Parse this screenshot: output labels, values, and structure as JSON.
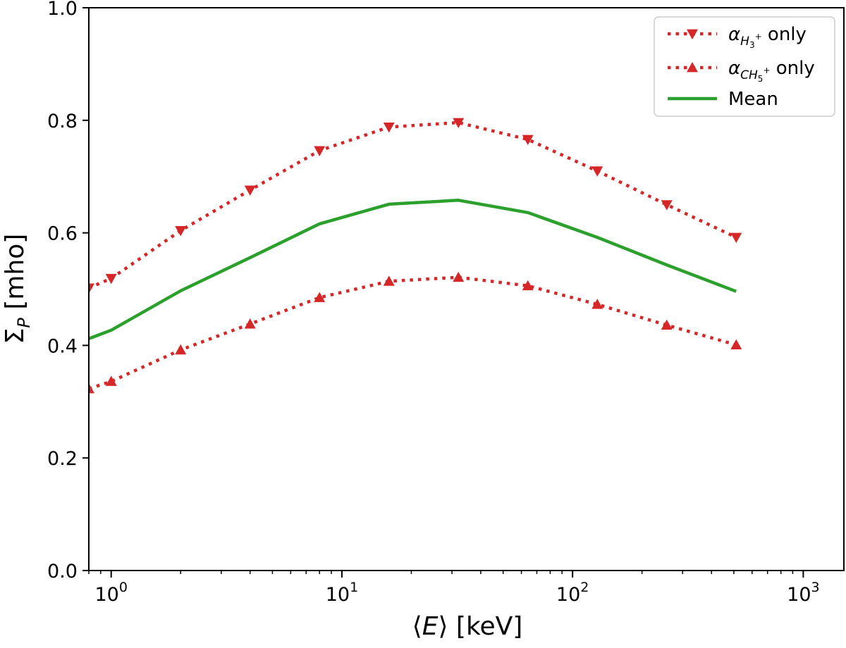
{
  "chart_data": {
    "type": "line",
    "title": "",
    "xlabel": "⟨E⟩ [keV]",
    "ylabel": "Σ_P [mho]",
    "xscale": "log",
    "xlim": [
      0.8,
      1500
    ],
    "ylim": [
      0.0,
      1.0
    ],
    "x_ticks": [
      {
        "value": 1,
        "base": "10",
        "exp": "0"
      },
      {
        "value": 10,
        "base": "10",
        "exp": "1"
      },
      {
        "value": 100,
        "base": "10",
        "exp": "2"
      },
      {
        "value": 1000,
        "base": "10",
        "exp": "3"
      }
    ],
    "y_ticks": [
      {
        "value": 0.0,
        "label": "0.0"
      },
      {
        "value": 0.2,
        "label": "0.2"
      },
      {
        "value": 0.4,
        "label": "0.4"
      },
      {
        "value": 0.6,
        "label": "0.6"
      },
      {
        "value": 0.8,
        "label": "0.8"
      },
      {
        "value": 1.0,
        "label": "1.0"
      }
    ],
    "legend_position": "top-right",
    "series": [
      {
        "name": "α_{H3+} only",
        "legend_main": "α",
        "legend_sub": "H",
        "legend_subsub": "3",
        "legend_sup": "+",
        "legend_suffix": "only",
        "style": "dotted",
        "marker": "triangle-down",
        "color": "#d62728",
        "x": [
          0.8,
          1,
          2,
          4,
          8,
          16,
          32,
          64,
          128,
          256,
          512
        ],
        "y": [
          0.502,
          0.519,
          0.604,
          0.676,
          0.746,
          0.788,
          0.796,
          0.766,
          0.71,
          0.65,
          0.592
        ]
      },
      {
        "name": "α_{CH5+} only",
        "legend_main": "α",
        "legend_sub": "CH",
        "legend_subsub": "5",
        "legend_sup": "+",
        "legend_suffix": "only",
        "style": "dotted",
        "marker": "triangle-up",
        "color": "#d62728",
        "x": [
          0.8,
          1,
          2,
          4,
          8,
          16,
          32,
          64,
          128,
          256,
          512
        ],
        "y": [
          0.323,
          0.336,
          0.392,
          0.438,
          0.485,
          0.514,
          0.521,
          0.506,
          0.473,
          0.436,
          0.401
        ]
      },
      {
        "name": "Mean",
        "legend_main": "Mean",
        "style": "solid",
        "marker": "none",
        "color": "#2ca02c",
        "x": [
          0.8,
          1,
          2,
          4,
          8,
          16,
          32,
          64,
          128,
          256,
          512
        ],
        "y": [
          0.412,
          0.427,
          0.497,
          0.556,
          0.616,
          0.651,
          0.658,
          0.636,
          0.592,
          0.543,
          0.496
        ]
      }
    ]
  }
}
